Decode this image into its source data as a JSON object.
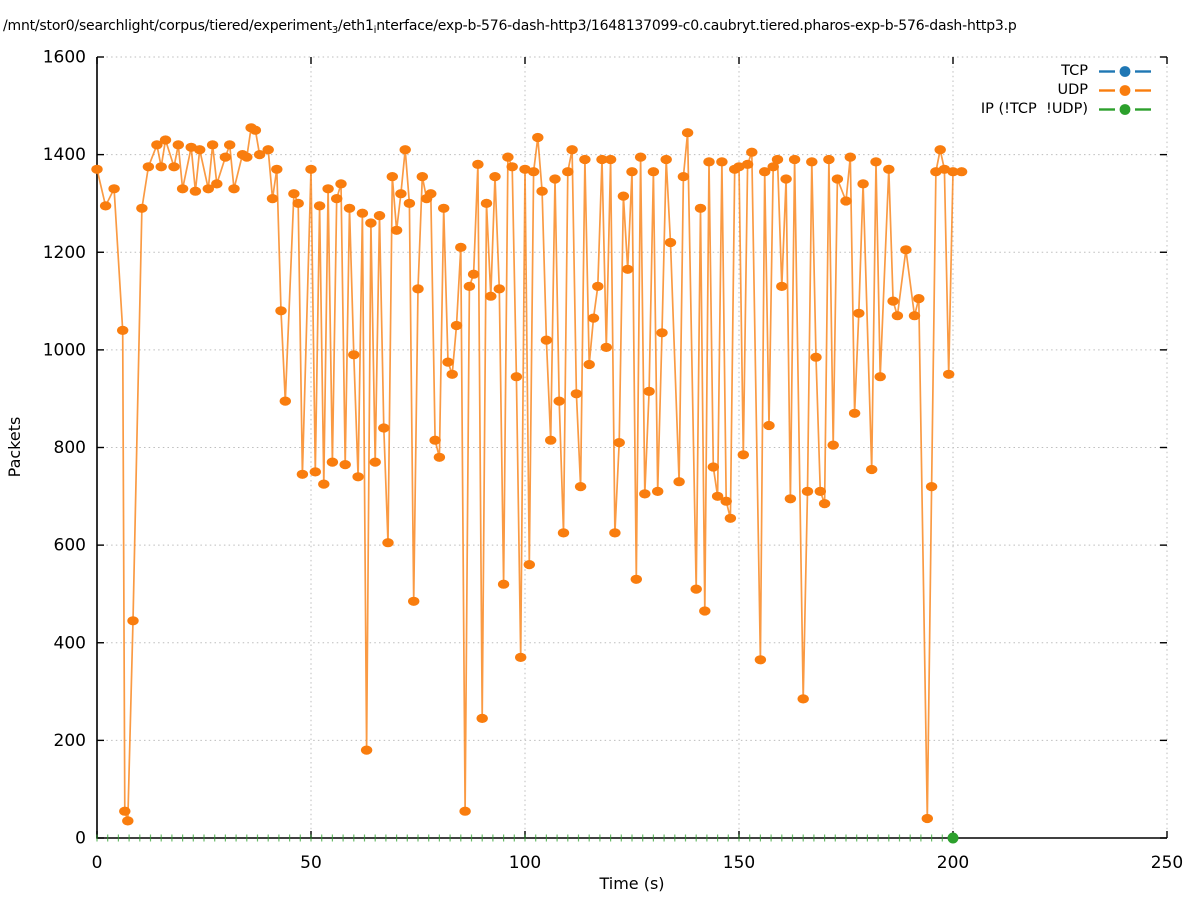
{
  "title": {
    "part1": "/mnt/stor0/searchlight/corpus/tiered/experiment",
    "sub1": "3",
    "part2": "/eth1",
    "sub2": "i",
    "part3": "nterface/exp-b-576-dash-http3/1648137099-c0.caubryt.tiered.pharos-exp-b-576-dash-http3.p"
  },
  "chart_data": {
    "type": "line",
    "title": "/mnt/stor0/searchlight/corpus/tiered/experiment₃/eth1ᵢnterface/exp-b-576-dash-http3/1648137099-c0.caubryt.tiered.pharos-exp-b-576-dash-http3.p",
    "xlabel": "Time (s)",
    "ylabel": "Packets",
    "xlim": [
      0,
      250
    ],
    "ylim": [
      0,
      1600
    ],
    "xticks": [
      0,
      50,
      100,
      150,
      200,
      250
    ],
    "yticks": [
      0,
      200,
      400,
      600,
      800,
      1000,
      1200,
      1400,
      1600
    ],
    "grid": true,
    "grid_style": "dotted",
    "legend_position": "top-right",
    "marker": "filled-circle",
    "series": [
      {
        "name": "TCP",
        "color": "#1f77b4",
        "points": []
      },
      {
        "name": "UDP",
        "color": "#f97d0e",
        "points": [
          [
            0,
            1370
          ],
          [
            2,
            1295
          ],
          [
            4,
            1330
          ],
          [
            6,
            1040
          ],
          [
            6.5,
            55
          ],
          [
            7.2,
            35
          ],
          [
            8.4,
            445
          ],
          [
            10.5,
            1290
          ],
          [
            12,
            1375
          ],
          [
            14,
            1420
          ],
          [
            15,
            1375
          ],
          [
            16,
            1430
          ],
          [
            18,
            1375
          ],
          [
            19,
            1420
          ],
          [
            20,
            1330
          ],
          [
            22,
            1415
          ],
          [
            23,
            1325
          ],
          [
            24,
            1410
          ],
          [
            26,
            1330
          ],
          [
            27,
            1420
          ],
          [
            28,
            1340
          ],
          [
            30,
            1395
          ],
          [
            31,
            1420
          ],
          [
            32,
            1330
          ],
          [
            34,
            1400
          ],
          [
            35,
            1395
          ],
          [
            36,
            1455
          ],
          [
            37,
            1450
          ],
          [
            38,
            1400
          ],
          [
            40,
            1410
          ],
          [
            41,
            1310
          ],
          [
            42,
            1370
          ],
          [
            43,
            1080
          ],
          [
            44,
            895
          ],
          [
            46,
            1320
          ],
          [
            47,
            1300
          ],
          [
            48,
            745
          ],
          [
            50,
            1370
          ],
          [
            51,
            750
          ],
          [
            52,
            1295
          ],
          [
            53,
            725
          ],
          [
            54,
            1330
          ],
          [
            55,
            770
          ],
          [
            56,
            1310
          ],
          [
            57,
            1340
          ],
          [
            58,
            765
          ],
          [
            59,
            1290
          ],
          [
            60,
            990
          ],
          [
            61,
            740
          ],
          [
            62,
            1280
          ],
          [
            63,
            180
          ],
          [
            64,
            1260
          ],
          [
            65,
            770
          ],
          [
            66,
            1275
          ],
          [
            67,
            840
          ],
          [
            68,
            605
          ],
          [
            69,
            1355
          ],
          [
            70,
            1245
          ],
          [
            71,
            1320
          ],
          [
            72,
            1410
          ],
          [
            73,
            1300
          ],
          [
            74,
            485
          ],
          [
            75,
            1125
          ],
          [
            76,
            1355
          ],
          [
            77,
            1310
          ],
          [
            78,
            1320
          ],
          [
            79,
            815
          ],
          [
            80,
            780
          ],
          [
            81,
            1290
          ],
          [
            82,
            975
          ],
          [
            83,
            950
          ],
          [
            84,
            1050
          ],
          [
            85,
            1210
          ],
          [
            86,
            55
          ],
          [
            87,
            1130
          ],
          [
            88,
            1155
          ],
          [
            89,
            1380
          ],
          [
            90,
            245
          ],
          [
            91,
            1300
          ],
          [
            92,
            1110
          ],
          [
            93,
            1355
          ],
          [
            94,
            1125
          ],
          [
            95,
            520
          ],
          [
            96,
            1395
          ],
          [
            97,
            1375
          ],
          [
            98,
            945
          ],
          [
            99,
            370
          ],
          [
            100,
            1370
          ],
          [
            101,
            560
          ],
          [
            102,
            1365
          ],
          [
            103,
            1435
          ],
          [
            104,
            1325
          ],
          [
            105,
            1020
          ],
          [
            106,
            815
          ],
          [
            107,
            1350
          ],
          [
            108,
            895
          ],
          [
            109,
            625
          ],
          [
            110,
            1365
          ],
          [
            111,
            1410
          ],
          [
            112,
            910
          ],
          [
            113,
            720
          ],
          [
            114,
            1390
          ],
          [
            115,
            970
          ],
          [
            116,
            1065
          ],
          [
            117,
            1130
          ],
          [
            118,
            1390
          ],
          [
            119,
            1005
          ],
          [
            120,
            1390
          ],
          [
            121,
            625
          ],
          [
            122,
            810
          ],
          [
            123,
            1315
          ],
          [
            124,
            1165
          ],
          [
            125,
            1365
          ],
          [
            126,
            530
          ],
          [
            127,
            1395
          ],
          [
            128,
            705
          ],
          [
            129,
            915
          ],
          [
            130,
            1365
          ],
          [
            131,
            710
          ],
          [
            132,
            1035
          ],
          [
            133,
            1390
          ],
          [
            134,
            1220
          ],
          [
            136,
            730
          ],
          [
            137,
            1355
          ],
          [
            138,
            1445
          ],
          [
            140,
            510
          ],
          [
            141,
            1290
          ],
          [
            142,
            465
          ],
          [
            143,
            1385
          ],
          [
            144,
            760
          ],
          [
            145,
            700
          ],
          [
            146,
            1385
          ],
          [
            147,
            690
          ],
          [
            148,
            655
          ],
          [
            149,
            1370
          ],
          [
            150,
            1375
          ],
          [
            151,
            785
          ],
          [
            152,
            1380
          ],
          [
            153,
            1405
          ],
          [
            155,
            365
          ],
          [
            156,
            1365
          ],
          [
            157,
            845
          ],
          [
            158,
            1375
          ],
          [
            159,
            1390
          ],
          [
            160,
            1130
          ],
          [
            161,
            1350
          ],
          [
            162,
            695
          ],
          [
            163,
            1390
          ],
          [
            165,
            285
          ],
          [
            166,
            710
          ],
          [
            167,
            1385
          ],
          [
            168,
            985
          ],
          [
            169,
            710
          ],
          [
            170,
            685
          ],
          [
            171,
            1390
          ],
          [
            172,
            805
          ],
          [
            173,
            1350
          ],
          [
            175,
            1305
          ],
          [
            176,
            1395
          ],
          [
            177,
            870
          ],
          [
            178,
            1075
          ],
          [
            179,
            1340
          ],
          [
            181,
            755
          ],
          [
            182,
            1385
          ],
          [
            183,
            945
          ],
          [
            185,
            1370
          ],
          [
            186,
            1100
          ],
          [
            187,
            1070
          ],
          [
            189,
            1205
          ],
          [
            191,
            1070
          ],
          [
            192,
            1105
          ],
          [
            194,
            40
          ],
          [
            195,
            720
          ],
          [
            196,
            1365
          ],
          [
            197,
            1410
          ],
          [
            198,
            1370
          ],
          [
            199,
            950
          ],
          [
            200,
            1365
          ],
          [
            202,
            1365
          ]
        ]
      },
      {
        "name": "IP (!TCP  !UDP)",
        "color": "#2ca02c",
        "constant_value": 0,
        "t_start": 0,
        "t_end": 200,
        "sample_interval": 2.5
      }
    ]
  }
}
